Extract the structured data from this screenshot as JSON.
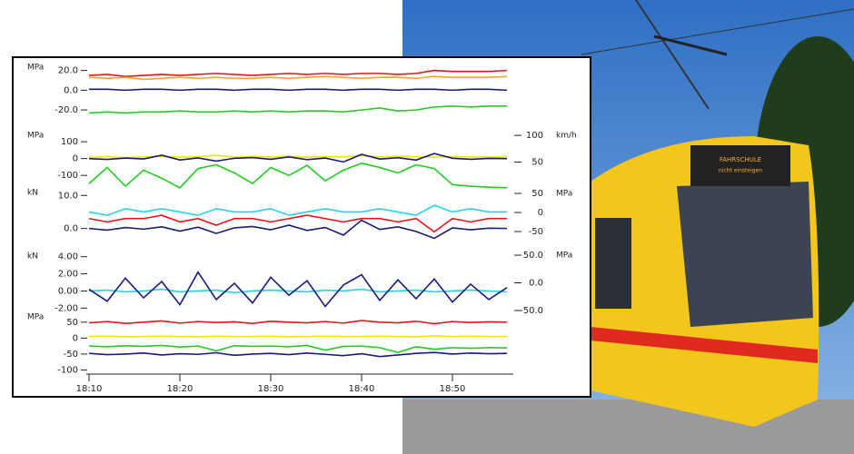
{
  "photo": {
    "destination": "FAHRSCHULE",
    "destination_sub": "nicht einsteigen"
  },
  "chart_data": [
    {
      "type": "line",
      "ylabel": "MPa",
      "ylim": [
        -30,
        27
      ],
      "yticks": [
        {
          "value": 20,
          "label": "20.0"
        },
        {
          "value": 0,
          "label": "0.0"
        },
        {
          "value": -20,
          "label": "-20.0"
        }
      ],
      "series": [
        {
          "color": "#e8141c",
          "values": [
            15,
            16,
            14,
            15,
            16,
            15,
            16,
            17,
            16,
            15,
            16,
            17,
            16,
            17,
            16,
            17,
            17,
            16,
            17,
            20,
            19,
            19,
            19,
            20
          ]
        },
        {
          "color": "#f5a623",
          "values": [
            13,
            12,
            13,
            11,
            12,
            13,
            12,
            13,
            12,
            12,
            13,
            12,
            13,
            14,
            13,
            12,
            13,
            13,
            12,
            14,
            13,
            13,
            13,
            14
          ]
        },
        {
          "color": "#1a1a7a",
          "values": [
            1,
            1,
            0,
            1,
            1,
            0,
            1,
            1,
            0,
            1,
            1,
            0,
            1,
            1,
            0,
            1,
            1,
            0,
            1,
            1,
            0,
            1,
            1,
            0
          ]
        },
        {
          "color": "#22cc22",
          "values": [
            -23,
            -22,
            -23,
            -22,
            -22,
            -21,
            -22,
            -22,
            -21,
            -22,
            -21,
            -22,
            -21,
            -21,
            -22,
            -20,
            -18,
            -21,
            -20,
            -17,
            -16,
            -17,
            -16,
            -16
          ]
        }
      ]
    },
    {
      "type": "line",
      "ylabel": "MPa",
      "ylim": [
        -180,
        160
      ],
      "yticks": [
        100,
        0,
        -100
      ],
      "y2label": "km/h",
      "y2lim": [
        0,
        107
      ],
      "y2ticks": [
        100,
        50
      ],
      "series": [
        {
          "color": "#f2e30f",
          "values": [
            8,
            12,
            6,
            10,
            14,
            9,
            11,
            20,
            7,
            13,
            9,
            15,
            8,
            12,
            10,
            18,
            9,
            14,
            11,
            8,
            12,
            10,
            9,
            11
          ]
        },
        {
          "color": "#1a1a7a",
          "values": [
            0,
            -5,
            3,
            -2,
            20,
            -8,
            4,
            -15,
            2,
            6,
            -4,
            10,
            -6,
            3,
            -20,
            25,
            -3,
            5,
            -9,
            30,
            2,
            -4,
            1,
            0
          ]
        },
        {
          "color": "#22cc22",
          "axis": "y2",
          "values": [
            10,
            40,
            5,
            35,
            20,
            2,
            38,
            45,
            30,
            10,
            40,
            25,
            44,
            15,
            35,
            48,
            40,
            30,
            45,
            38,
            8,
            5,
            3,
            2
          ]
        }
      ]
    },
    {
      "type": "line",
      "ylabel": "kN",
      "ylim": [
        -4.5,
        12
      ],
      "yticks": [
        {
          "value": 10,
          "label": "10.0"
        },
        {
          "value": 0,
          "label": "0.0"
        }
      ],
      "y2label": "MPa",
      "y2lim": [
        -81,
        62
      ],
      "y2ticks": [
        50,
        0,
        -50
      ],
      "series": [
        {
          "color": "#27d3e0",
          "values": [
            5,
            4,
            6,
            5,
            6,
            5,
            4,
            6,
            5,
            5,
            6,
            4,
            5,
            6,
            5,
            5,
            6,
            5,
            4,
            7,
            5,
            6,
            5,
            5
          ]
        },
        {
          "color": "#e8141c",
          "values": [
            3,
            2,
            3,
            3,
            4,
            2,
            3,
            1,
            3,
            3,
            2,
            3,
            4,
            3,
            2,
            3,
            3,
            2,
            3,
            -1,
            3,
            2,
            3,
            3
          ]
        },
        {
          "color": "#1a1a7a",
          "values": [
            0,
            -0.5,
            0.3,
            -0.2,
            0.5,
            -0.8,
            0.4,
            -1.5,
            0.2,
            0.6,
            -0.4,
            1,
            -0.6,
            0.3,
            -2,
            2.5,
            -0.3,
            0.5,
            -0.9,
            -3,
            0.2,
            -0.4,
            0.1,
            0
          ]
        }
      ]
    },
    {
      "type": "line",
      "ylabel": "kN",
      "ylim": [
        -2.6,
        4.5
      ],
      "yticks": [
        {
          "value": 4,
          "label": "4.00"
        },
        {
          "value": 2,
          "label": "2.00"
        },
        {
          "value": 0,
          "label": "0.00"
        },
        {
          "value": -2,
          "label": "-2.00"
        }
      ],
      "y2label": "MPa",
      "y2lim": [
        -55,
        55
      ],
      "y2ticks": [
        {
          "value": 50,
          "label": "50.0"
        },
        {
          "value": 0,
          "label": "0.0"
        },
        {
          "value": -50,
          "label": "-50.0"
        }
      ],
      "series": [
        {
          "color": "#27d3e0",
          "values": [
            0,
            0.1,
            -0.1,
            0,
            0.2,
            -0.1,
            0,
            0.1,
            -0.2,
            0,
            0.1,
            0,
            -0.1,
            0.1,
            0,
            0.2,
            -0.1,
            0,
            0.1,
            -0.1,
            0,
            0.1,
            0,
            -0.1
          ]
        },
        {
          "color": "#1a1a7a",
          "values": [
            0.2,
            -1.2,
            1.5,
            -0.8,
            1.1,
            -1.6,
            2.2,
            -1.0,
            0.9,
            -1.4,
            1.6,
            -0.5,
            1.2,
            -1.8,
            0.7,
            1.9,
            -1.1,
            1.3,
            -0.9,
            1.4,
            -1.3,
            0.8,
            -1.0,
            0.4
          ]
        }
      ]
    },
    {
      "type": "line",
      "ylabel": "MPa",
      "ylim": [
        -113,
        78
      ],
      "yticks": [
        50,
        0,
        -50,
        -100
      ],
      "x": [
        "18:10",
        "18:12",
        "18:14",
        "18:16",
        "18:18",
        "18:20",
        "18:22",
        "18:24",
        "18:26",
        "18:28",
        "18:30",
        "18:32",
        "18:34",
        "18:36",
        "18:38",
        "18:40",
        "18:42",
        "18:44",
        "18:46",
        "18:48",
        "18:50",
        "18:52",
        "18:54",
        "18:56"
      ],
      "xticks": [
        "18:10",
        "18:20",
        "18:30",
        "18:40",
        "18:50"
      ],
      "series": [
        {
          "color": "#e8141c",
          "values": [
            48,
            52,
            46,
            50,
            54,
            47,
            52,
            49,
            51,
            46,
            53,
            50,
            48,
            52,
            47,
            55,
            50,
            48,
            53,
            45,
            52,
            49,
            51,
            50
          ]
        },
        {
          "color": "#f2e30f",
          "values": [
            5,
            6,
            4,
            5,
            6,
            5,
            4,
            6,
            5,
            5,
            6,
            4,
            5,
            6,
            5,
            5,
            6,
            5,
            4,
            7,
            5,
            6,
            5,
            5
          ]
        },
        {
          "color": "#22cc22",
          "values": [
            -25,
            -27,
            -24,
            -26,
            -23,
            -28,
            -25,
            -40,
            -24,
            -26,
            -25,
            -27,
            -23,
            -38,
            -26,
            -25,
            -30,
            -45,
            -27,
            -35,
            -30,
            -32,
            -30,
            -31
          ]
        },
        {
          "color": "#1a1a7a",
          "values": [
            -48,
            -52,
            -50,
            -47,
            -53,
            -49,
            -51,
            -46,
            -54,
            -50,
            -48,
            -52,
            -47,
            -51,
            -55,
            -49,
            -58,
            -53,
            -48,
            -45,
            -50,
            -47,
            -49,
            -48
          ]
        }
      ]
    }
  ]
}
